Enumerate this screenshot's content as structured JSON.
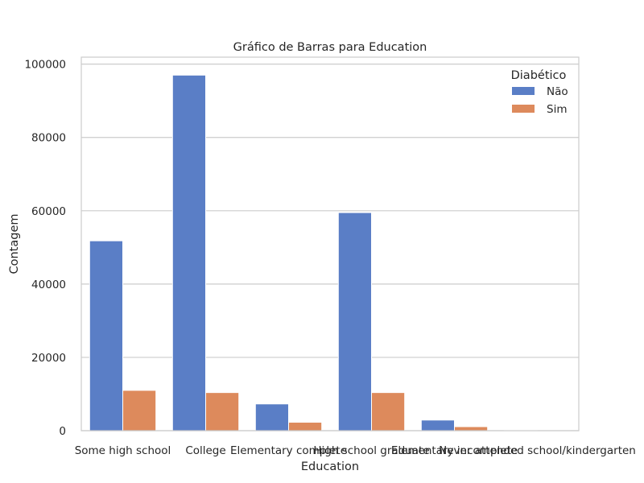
{
  "chart_data": {
    "type": "bar",
    "title": "Gráfico de Barras para Education",
    "xlabel": "Education",
    "ylabel": "Contagem",
    "categories": [
      "Some high school",
      "College",
      "Elementary complete",
      "High school graduate",
      "Elementary incomplete",
      "Never attended school/kindergarten"
    ],
    "series": [
      {
        "name": "Não",
        "color": "#5a7ec6",
        "values": [
          51800,
          97000,
          7300,
          59500,
          2900,
          100
        ]
      },
      {
        "name": "Sim",
        "color": "#dd8a5c",
        "values": [
          11000,
          10400,
          2300,
          10400,
          1100,
          30
        ]
      }
    ],
    "ylim": [
      0,
      101900
    ],
    "yticks": [
      0,
      20000,
      40000,
      60000,
      80000,
      100000
    ],
    "ytick_labels": [
      "0",
      "20000",
      "40000",
      "60000",
      "80000",
      "100000"
    ],
    "grid": "horizontal",
    "legend": {
      "title": "Diabético",
      "placement": "top-right"
    }
  }
}
